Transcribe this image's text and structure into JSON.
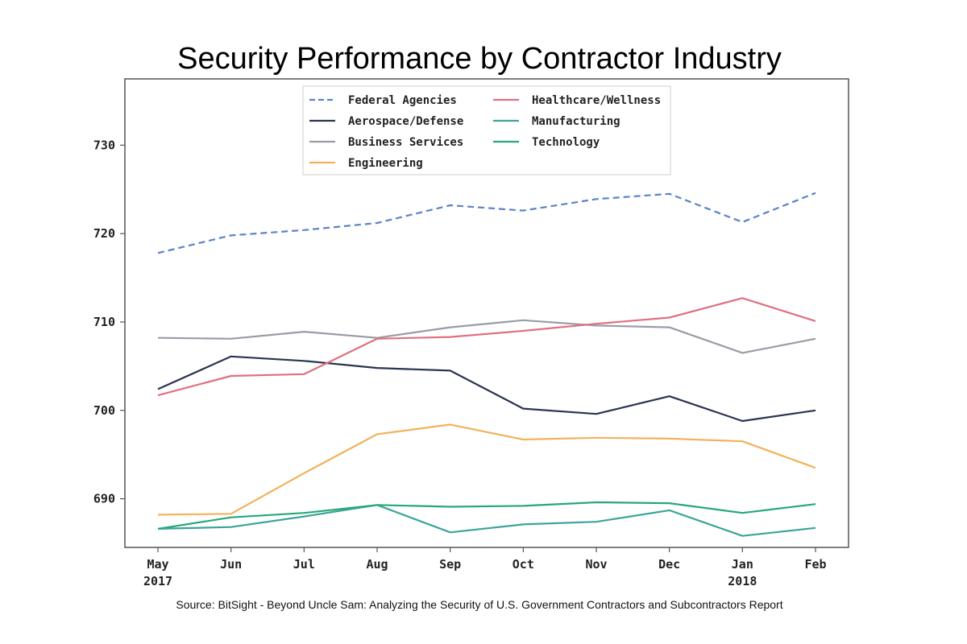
{
  "chart_data": {
    "type": "line",
    "title": "Security Performance by Contractor Industry",
    "source": "Source: BitSight - Beyond Uncle Sam: Analyzing the Security of U.S. Government Contractors and Subcontractors Report",
    "xlabel": "",
    "ylabel": "",
    "categories": [
      "May\n2017",
      "Jun",
      "Jul",
      "Aug",
      "Sep",
      "Oct",
      "Nov",
      "Dec",
      "Jan\n2018",
      "Feb"
    ],
    "ylim": [
      684.5,
      737.5
    ],
    "yticks": [
      690,
      700,
      710,
      720,
      730
    ],
    "grid": false,
    "legend": "top-center",
    "series": [
      {
        "name": "Federal Agencies",
        "color": "#5b84c4",
        "dash": true,
        "values": [
          717.8,
          719.8,
          720.4,
          721.2,
          723.2,
          722.6,
          723.9,
          724.5,
          721.3,
          724.6
        ]
      },
      {
        "name": "Aerospace/Defense",
        "color": "#2b3450",
        "dash": false,
        "values": [
          702.4,
          706.1,
          705.6,
          704.8,
          704.5,
          700.2,
          699.6,
          701.6,
          698.8,
          700.0
        ]
      },
      {
        "name": "Business Services",
        "color": "#9a9ca6",
        "dash": false,
        "values": [
          708.2,
          708.1,
          708.9,
          708.2,
          709.4,
          710.2,
          709.6,
          709.4,
          706.5,
          708.1
        ]
      },
      {
        "name": "Engineering",
        "color": "#f2b25c",
        "dash": false,
        "values": [
          688.2,
          688.3,
          692.9,
          697.3,
          698.4,
          696.7,
          696.9,
          696.8,
          696.5,
          693.5
        ]
      },
      {
        "name": "Healthcare/Wellness",
        "color": "#e0707f",
        "dash": false,
        "values": [
          701.7,
          703.9,
          704.1,
          708.1,
          708.3,
          709.0,
          709.8,
          710.5,
          712.7,
          710.1
        ]
      },
      {
        "name": "Manufacturing",
        "color": "#3aa59a",
        "dash": false,
        "values": [
          686.6,
          686.8,
          688.0,
          689.3,
          686.2,
          687.1,
          687.4,
          688.7,
          685.8,
          686.7
        ]
      },
      {
        "name": "Technology",
        "color": "#27a77a",
        "dash": false,
        "values": [
          686.6,
          687.9,
          688.4,
          689.3,
          689.1,
          689.2,
          689.6,
          689.5,
          688.4,
          689.4
        ]
      }
    ]
  }
}
